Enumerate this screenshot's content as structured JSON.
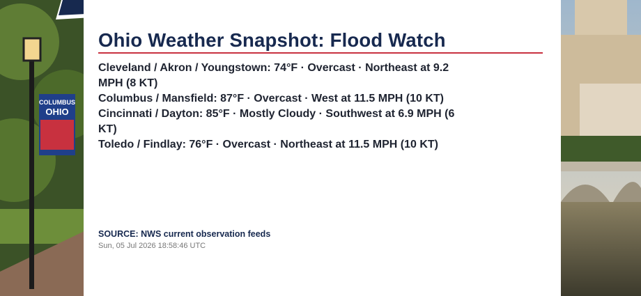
{
  "header": {
    "title": "Ohio Weather Snapshot: Flood Watch"
  },
  "conditions": [
    "Cleveland / Akron / Youngstown: 74°F · Overcast · Northeast at 9.2 MPH (8 KT)",
    "Columbus / Mansfield: 87°F · Overcast · West at 11.5 MPH (10 KT)",
    "Cincinnati / Dayton: 85°F · Mostly Cloudy · Southwest at 6.9 MPH (6 KT)",
    "Toledo / Findlay: 76°F · Overcast · Northeast at 11.5 MPH (10 KT)"
  ],
  "footer": {
    "source": "SOURCE: NWS current observation feeds",
    "timestamp": "Sun, 05 Jul 2026 18:58:46 UTC"
  },
  "sign": {
    "line1": "COLUMBUS",
    "line2": "OHIO"
  }
}
